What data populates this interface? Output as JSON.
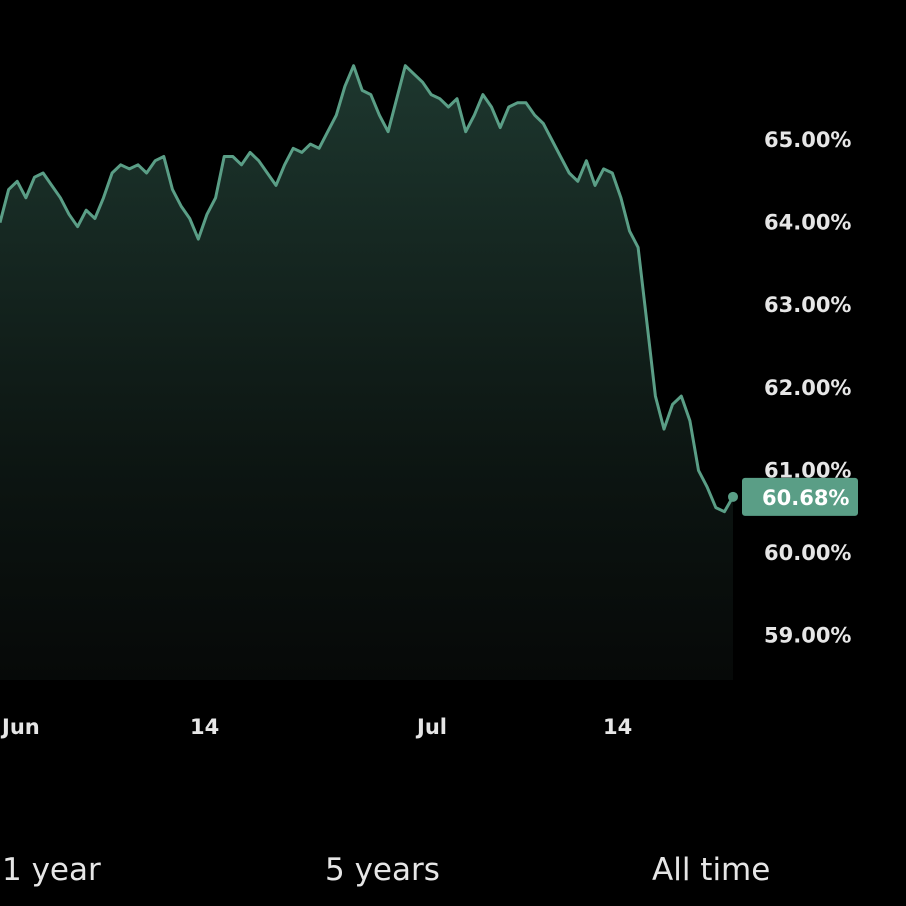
{
  "colors": {
    "line": "#5a9e86",
    "badge": "#5a9e86",
    "background": "#000000"
  },
  "chart_data": {
    "type": "area",
    "x_ticks": [
      "Jun",
      "14",
      "Jul",
      "14"
    ],
    "y_ticks": [
      "65.00%",
      "64.00%",
      "63.00%",
      "62.00%",
      "61.00%",
      "60.00%",
      "59.00%"
    ],
    "ylim": [
      58.5,
      66.2
    ],
    "last_value_label": "60.68%",
    "series": [
      {
        "values": [
          64.0,
          64.4,
          64.5,
          64.3,
          64.55,
          64.6,
          64.45,
          64.3,
          64.1,
          63.95,
          64.15,
          64.05,
          64.3,
          64.6,
          64.7,
          64.65,
          64.7,
          64.6,
          64.75,
          64.8,
          64.4,
          64.2,
          64.05,
          63.8,
          64.1,
          64.3,
          64.8,
          64.8,
          64.7,
          64.85,
          64.75,
          64.6,
          64.45,
          64.7,
          64.9,
          64.85,
          64.95,
          64.9,
          65.1,
          65.3,
          65.65,
          65.9,
          65.6,
          65.55,
          65.3,
          65.1,
          65.5,
          65.9,
          65.8,
          65.7,
          65.55,
          65.5,
          65.4,
          65.5,
          65.1,
          65.3,
          65.55,
          65.4,
          65.15,
          65.4,
          65.45,
          65.45,
          65.3,
          65.2,
          65.0,
          64.8,
          64.6,
          64.5,
          64.75,
          64.45,
          64.65,
          64.6,
          64.3,
          63.9,
          63.7,
          62.8,
          61.9,
          61.5,
          61.8,
          61.9,
          61.6,
          61.0,
          60.8,
          60.55,
          60.5,
          60.68
        ]
      }
    ]
  },
  "range_buttons": [
    "1 year",
    "5 years",
    "All time"
  ]
}
